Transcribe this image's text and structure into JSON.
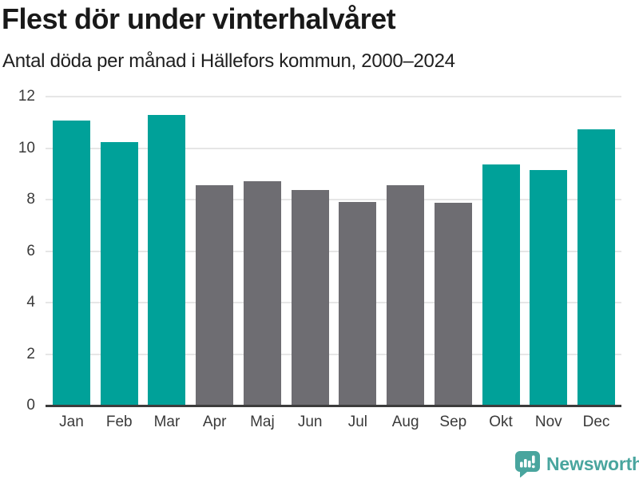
{
  "header": {
    "title": "Flest dör under vinterhalvåret",
    "subtitle": "Antal döda per månad i Hällefors kommun, 2000–2024"
  },
  "chart_data": {
    "type": "bar",
    "title": "Flest dör under vinterhalvåret",
    "subtitle": "Antal döda per månad i Hällefors kommun, 2000–2024",
    "categories": [
      "Jan",
      "Feb",
      "Mar",
      "Apr",
      "Maj",
      "Jun",
      "Jul",
      "Aug",
      "Sep",
      "Okt",
      "Nov",
      "Dec"
    ],
    "values": [
      11.08,
      10.24,
      11.28,
      8.56,
      8.72,
      8.36,
      7.92,
      8.56,
      7.88,
      9.36,
      9.16,
      10.72
    ],
    "highlighted_categories": [
      "Jan",
      "Feb",
      "Mar",
      "Okt",
      "Nov",
      "Dec"
    ],
    "colors": {
      "highlight": "#00a199",
      "default": "#6e6d72",
      "gridline": "#e6e6e6",
      "axis": "#3c3c3c",
      "tick_text": "#3a3a3a"
    },
    "xlabel": "",
    "ylabel": "",
    "ylim": [
      0,
      12
    ],
    "yticks": [
      0,
      2,
      4,
      6,
      8,
      10,
      12
    ],
    "grid": "horizontal-only",
    "legend": "none"
  },
  "footer": {
    "brand": "Newsworthy",
    "brand_color": "#49a59e",
    "logo_icon": "bar-chart-speech-bubble-icon"
  }
}
